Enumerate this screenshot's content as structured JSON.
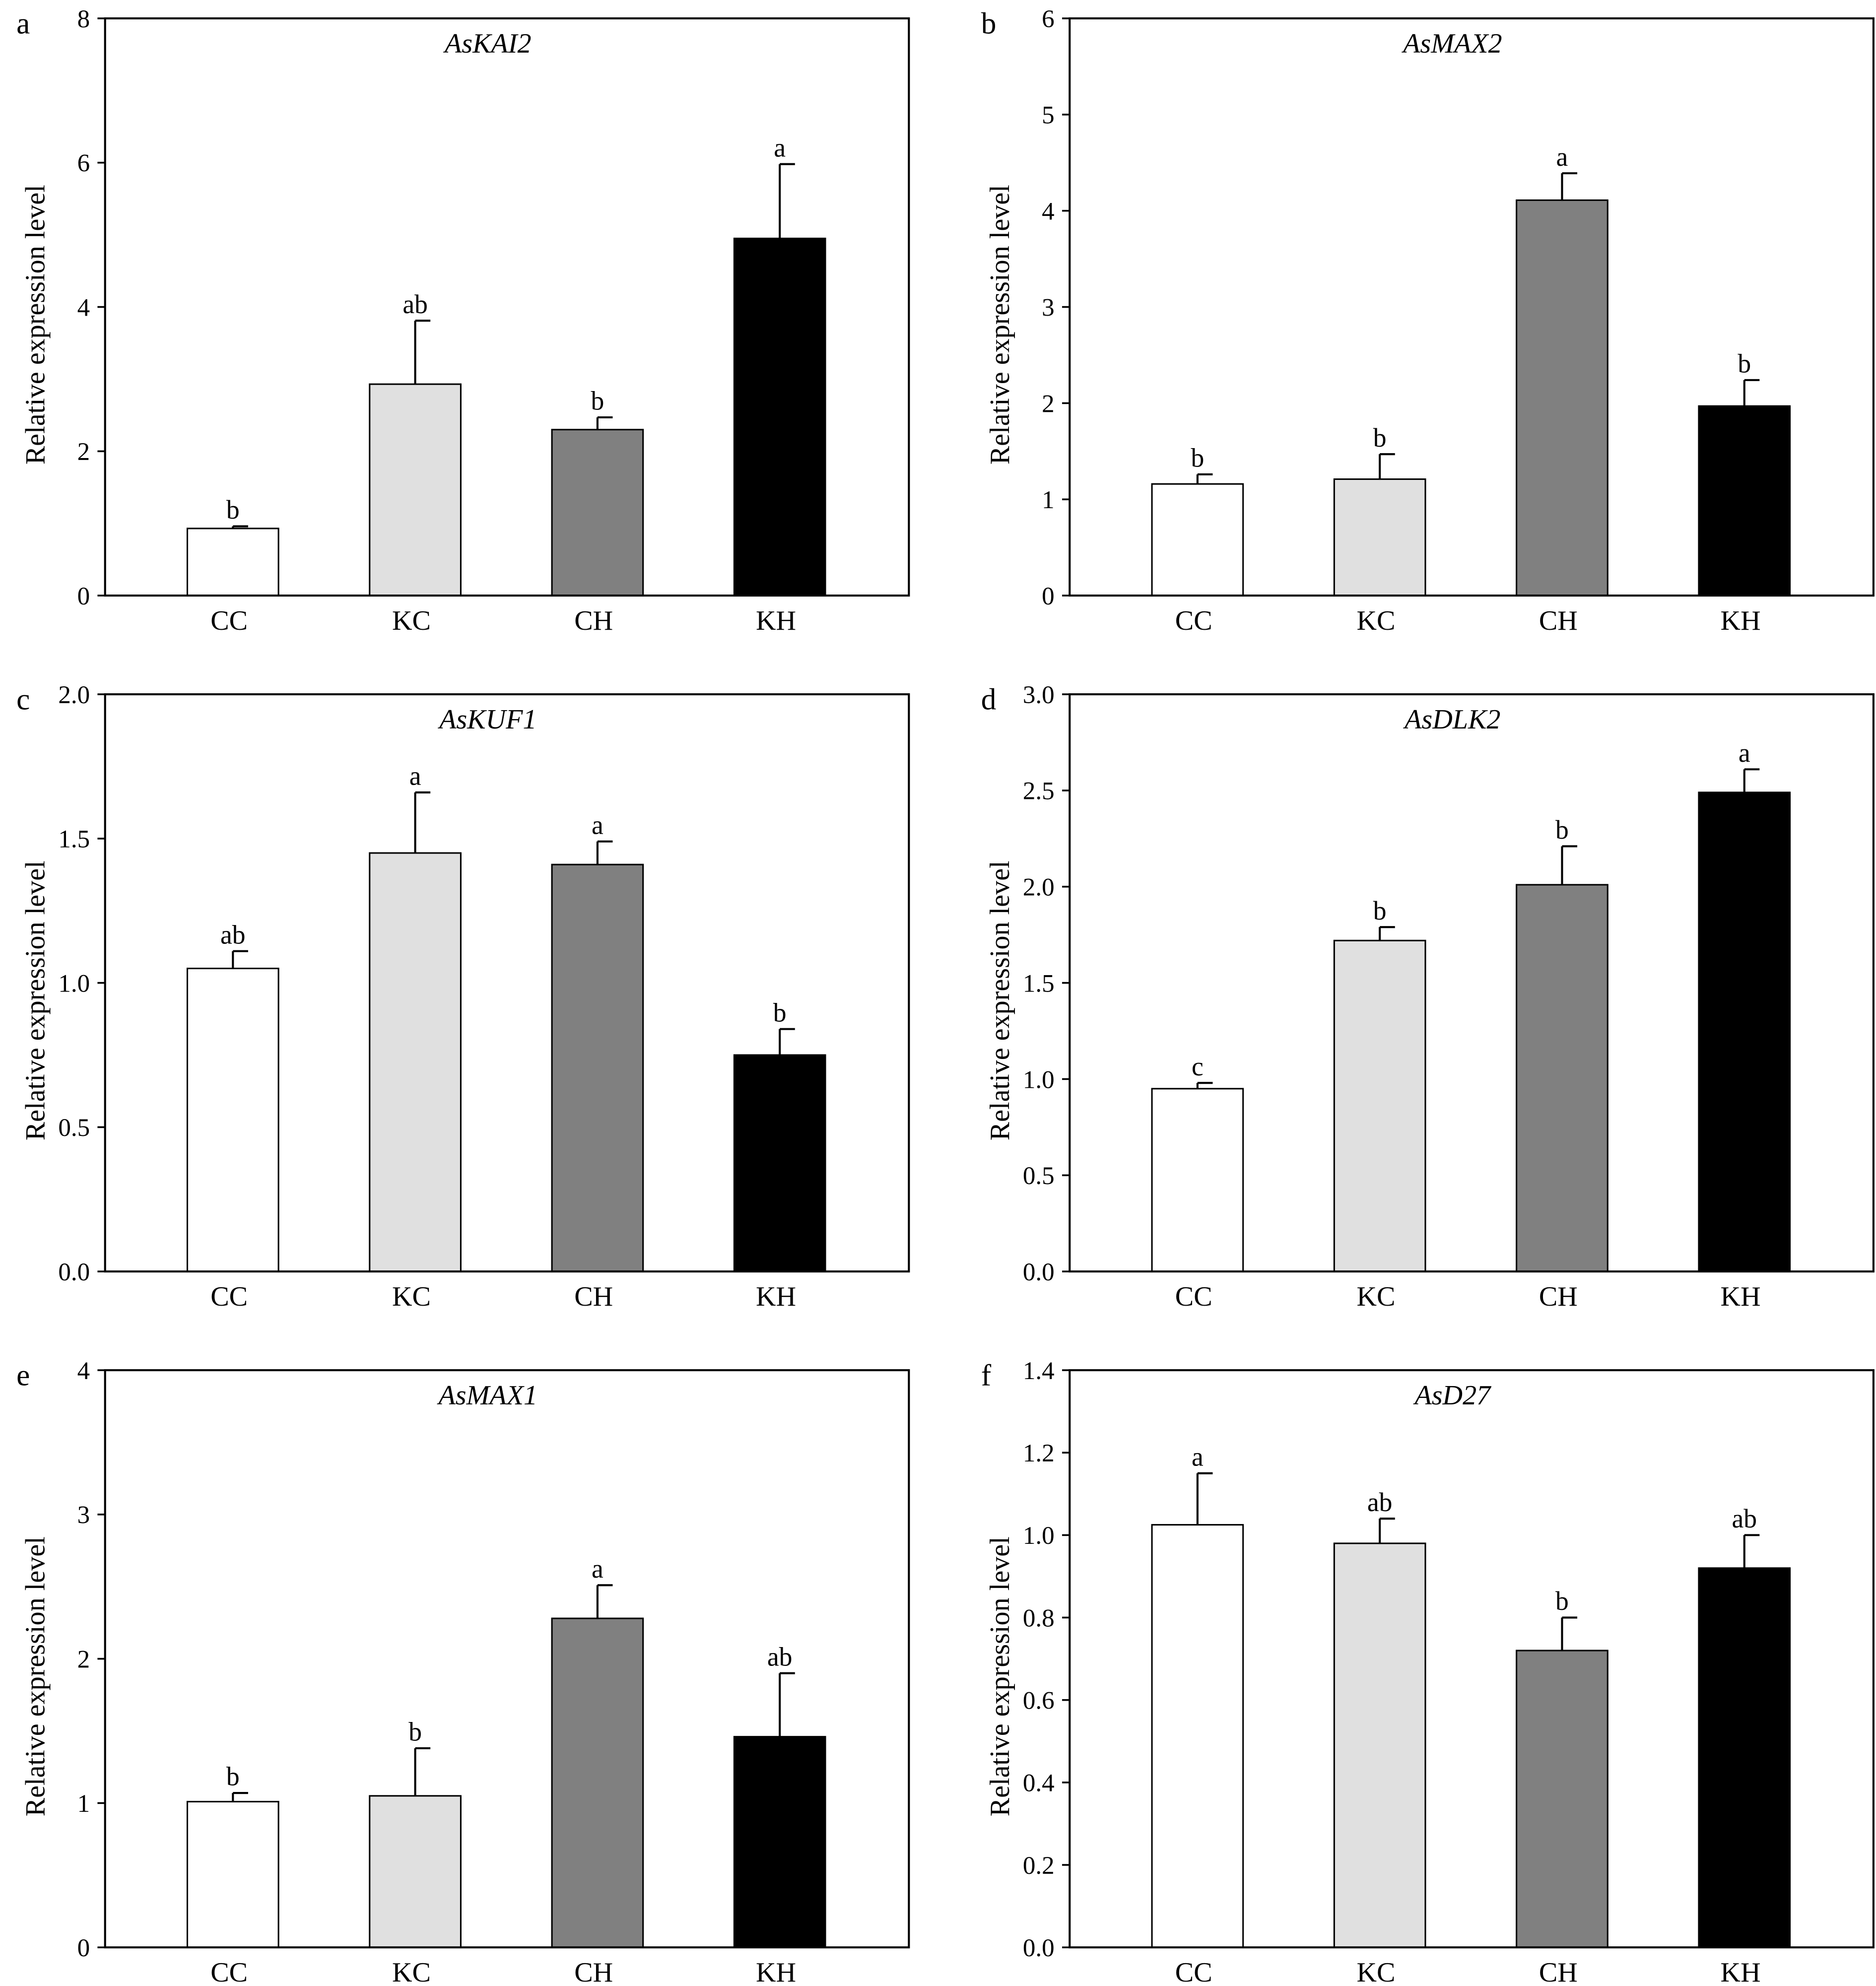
{
  "chart_data": [
    {
      "type": "bar",
      "panel": "a",
      "title": "AsKAI2",
      "ylabel": "Relative expression level",
      "xlabel": "",
      "categories": [
        "CC",
        "KC",
        "CH",
        "KH"
      ],
      "ylim": [
        0,
        8
      ],
      "yticks": [
        "0",
        "2",
        "4",
        "6",
        "8"
      ],
      "values": [
        0.93,
        2.93,
        2.3,
        4.95
      ],
      "error_upper": [
        0.96,
        3.81,
        2.47,
        5.98
      ],
      "significance": [
        "b",
        "ab",
        "b",
        "a"
      ]
    },
    {
      "type": "bar",
      "panel": "b",
      "title": "AsMAX2",
      "ylabel": "Relative expression level",
      "xlabel": "",
      "categories": [
        "CC",
        "KC",
        "CH",
        "KH"
      ],
      "ylim": [
        0,
        6
      ],
      "yticks": [
        "0",
        "1",
        "2",
        "3",
        "4",
        "5",
        "6"
      ],
      "values": [
        1.16,
        1.21,
        4.11,
        1.97
      ],
      "error_upper": [
        1.26,
        1.47,
        4.39,
        2.24
      ],
      "significance": [
        "b",
        "b",
        "a",
        "b"
      ]
    },
    {
      "type": "bar",
      "panel": "c",
      "title": "AsKUF1",
      "ylabel": "Relative expression level",
      "xlabel": "",
      "categories": [
        "CC",
        "KC",
        "CH",
        "KH"
      ],
      "ylim": [
        0,
        2.0
      ],
      "yticks": [
        "0.0",
        "0.5",
        "1.0",
        "1.5",
        "2.0"
      ],
      "values": [
        1.05,
        1.45,
        1.41,
        0.75
      ],
      "error_upper": [
        1.11,
        1.66,
        1.49,
        0.84
      ],
      "significance": [
        "ab",
        "a",
        "a",
        "b"
      ]
    },
    {
      "type": "bar",
      "panel": "d",
      "title": "AsDLK2",
      "ylabel": "Relative expression level",
      "xlabel": "",
      "categories": [
        "CC",
        "KC",
        "CH",
        "KH"
      ],
      "ylim": [
        0,
        3.0
      ],
      "yticks": [
        "0.0",
        "0.5",
        "1.0",
        "1.5",
        "2.0",
        "2.5",
        "3.0"
      ],
      "values": [
        0.95,
        1.72,
        2.01,
        2.49
      ],
      "error_upper": [
        0.98,
        1.79,
        2.21,
        2.61
      ],
      "significance": [
        "c",
        "b",
        "b",
        "a"
      ]
    },
    {
      "type": "bar",
      "panel": "e",
      "title": "AsMAX1",
      "ylabel": "Relative expression level",
      "xlabel": "",
      "categories": [
        "CC",
        "KC",
        "CH",
        "KH"
      ],
      "ylim": [
        0,
        4
      ],
      "yticks": [
        "0",
        "1",
        "2",
        "3",
        "4"
      ],
      "values": [
        1.01,
        1.05,
        2.28,
        1.46
      ],
      "error_upper": [
        1.07,
        1.38,
        2.51,
        1.9
      ],
      "significance": [
        "b",
        "b",
        "a",
        "ab"
      ]
    },
    {
      "type": "bar",
      "panel": "f",
      "title": "AsD27",
      "ylabel": "Relative expression level",
      "xlabel": "",
      "categories": [
        "CC",
        "KC",
        "CH",
        "KH"
      ],
      "ylim": [
        0,
        1.4
      ],
      "yticks": [
        "0.0",
        "0.2",
        "0.4",
        "0.6",
        "0.8",
        "1.0",
        "1.2",
        "1.4"
      ],
      "values": [
        1.025,
        0.98,
        0.72,
        0.92
      ],
      "error_upper": [
        1.15,
        1.04,
        0.8,
        1.0
      ],
      "significance": [
        "a",
        "ab",
        "b",
        "ab"
      ]
    }
  ],
  "colors": {
    "CC": "#ffffff",
    "KC": "#e0e0e0",
    "CH": "#808080",
    "KH": "#000000"
  }
}
